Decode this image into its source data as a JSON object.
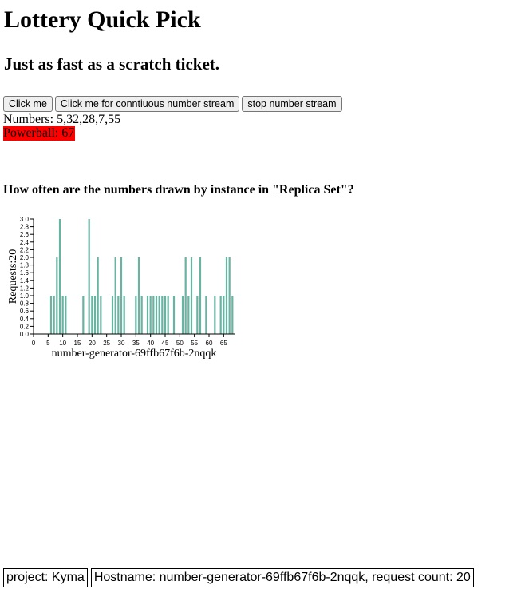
{
  "header": {
    "title": "Lottery Quick Pick",
    "subtitle": "Just as fast as a scratch ticket."
  },
  "controls": {
    "click_label": "Click me",
    "stream_label": "Click me for conntiuous number stream",
    "stop_label": "stop number stream"
  },
  "result": {
    "numbers_text": "Numbers: 5,32,28,7,55",
    "powerball_text": "Powerball: 67",
    "powerball_color": "#ff0000"
  },
  "question": "How often are the numbers drawn by instance in \"Replica Set\"?",
  "chart_data": {
    "type": "bar",
    "xlabel": "number-generator-69ffb67f6b-2nqqk",
    "ylabel": "Requests:20",
    "xlim": [
      0,
      69
    ],
    "ylim": [
      0,
      3.0
    ],
    "xticks": [
      "0",
      "5",
      "10",
      "15",
      "20",
      "25",
      "30",
      "35",
      "40",
      "45",
      "50",
      "55",
      "60",
      "65"
    ],
    "yticks": [
      "0.0",
      "0.2",
      "0.4",
      "0.6",
      "0.8",
      "1.0",
      "1.2",
      "1.4",
      "1.6",
      "1.8",
      "2.0",
      "2.2",
      "2.4",
      "2.6",
      "2.8",
      "3.0"
    ],
    "bar_color": "#69b3a2",
    "x": [
      6,
      7,
      8,
      9,
      10,
      11,
      17,
      19,
      20,
      21,
      22,
      23,
      27,
      28,
      29,
      30,
      31,
      35,
      36,
      37,
      39,
      40,
      41,
      42,
      43,
      44,
      45,
      46,
      48,
      51,
      52,
      53,
      54,
      56,
      57,
      59,
      62,
      64,
      65,
      66,
      67,
      68
    ],
    "values": [
      1,
      1,
      2,
      3,
      1,
      1,
      1,
      3,
      1,
      1,
      2,
      1,
      1,
      2,
      1,
      2,
      1,
      1,
      2,
      1,
      1,
      1,
      1,
      1,
      1,
      1,
      1,
      1,
      1,
      1,
      2,
      1,
      2,
      1,
      2,
      1,
      1,
      1,
      1,
      2,
      2,
      1
    ]
  },
  "footer": {
    "project": "project: Kyma",
    "hostname": "Hostname: number-generator-69ffb67f6b-2nqqk, request count: 20"
  }
}
